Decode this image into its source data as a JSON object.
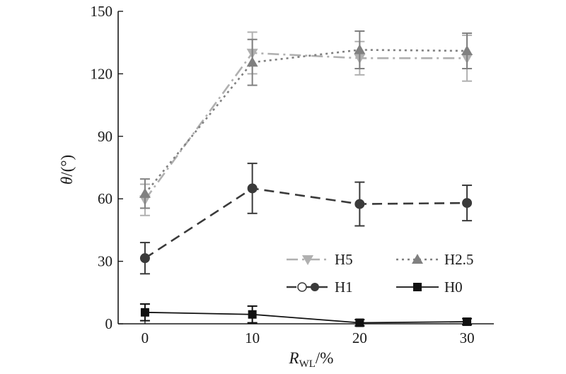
{
  "chart_data": {
    "type": "line",
    "xlabel_main": "R",
    "xlabel_sub": "WL",
    "xlabel_unit": "/%",
    "ylabel_main": "θ",
    "ylabel_unit": "/(°)",
    "x": [
      0,
      10,
      20,
      30
    ],
    "x_ticks": [
      "0",
      "10",
      "20",
      "30"
    ],
    "y_ticks": [
      "0",
      "30",
      "60",
      "90",
      "120",
      "150"
    ],
    "xlim": [
      -2.5,
      32.5
    ],
    "ylim": [
      0,
      150
    ],
    "legend_position": "lower-right",
    "series": [
      {
        "name": "H5",
        "values": [
          59.5,
          130,
          127.5,
          127.5
        ],
        "err": [
          7.5,
          10,
          8,
          11
        ],
        "color": "#b0b0b0",
        "marker": "triangle-down",
        "dash": "dashdot"
      },
      {
        "name": "H2.5",
        "values": [
          62.5,
          125.5,
          131.5,
          131
        ],
        "err": [
          7,
          11,
          9,
          8.5
        ],
        "color": "#808080",
        "marker": "triangle-up",
        "dash": "dotted"
      },
      {
        "name": "H1",
        "values": [
          31.5,
          65,
          57.5,
          58
        ],
        "err": [
          7.5,
          12,
          10.5,
          8.5
        ],
        "color": "#3a3a3a",
        "marker": "circle",
        "dash": "dashed"
      },
      {
        "name": "H0",
        "values": [
          5.5,
          4.5,
          0.5,
          1
        ],
        "err": [
          4,
          4,
          1.5,
          1.5
        ],
        "color": "#111111",
        "marker": "square",
        "dash": "solid"
      }
    ]
  }
}
